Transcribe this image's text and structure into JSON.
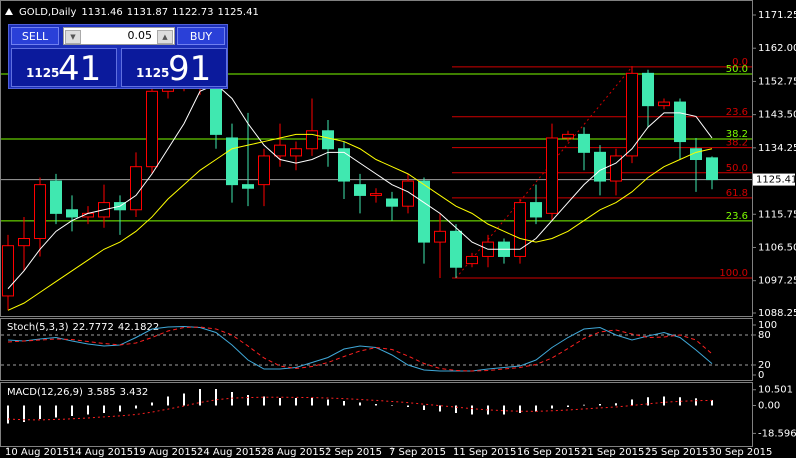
{
  "chart_data": [
    {
      "type": "candlestick",
      "title": "GOLD,Daily",
      "categories": [
        "10 Aug 2015",
        null,
        null,
        null,
        "14 Aug 2015",
        null,
        null,
        null,
        "19 Aug 2015",
        null,
        null,
        null,
        "24 Aug 2015",
        null,
        null,
        null,
        "28 Aug 2015",
        null,
        null,
        null,
        "2 Sep 2015",
        null,
        null,
        null,
        "7 Sep 2015",
        null,
        null,
        null,
        "11 Sep 2015",
        null,
        null,
        null,
        "16 Sep 2015",
        null,
        null,
        null,
        "21 Sep 2015",
        null,
        null,
        null,
        "25 Sep 2015",
        null,
        null,
        null,
        "30 Sep 2015"
      ],
      "open": [
        1093,
        1107,
        1109,
        1125,
        1117,
        1115,
        1115,
        1119,
        1117,
        1129,
        1150,
        1152,
        1152,
        1152,
        1137,
        1124,
        1124,
        1132,
        1132,
        1134,
        1139,
        1134,
        1124,
        1121,
        1120,
        1118,
        1125,
        1108,
        1111,
        1102,
        1104,
        1108,
        1104,
        1119,
        1116,
        1137,
        1138,
        1133,
        1125,
        1132,
        1155,
        1146,
        1147,
        1134,
        1131.46
      ],
      "high": [
        1110,
        1115,
        1126,
        1127,
        1121,
        1118,
        1124,
        1121,
        1133,
        1157,
        1162,
        1155,
        1162,
        1155,
        1141,
        1144,
        1134,
        1141,
        1136,
        1148,
        1142,
        1136,
        1127,
        1123,
        1122,
        1127,
        1126,
        1116,
        1113,
        1105,
        1110,
        1109,
        1120,
        1124,
        1141,
        1139,
        1140,
        1135,
        1134,
        1157,
        1156,
        1148,
        1148,
        1137,
        1131.87
      ],
      "low": [
        1089,
        1100,
        1104,
        1113,
        1111,
        1113,
        1112,
        1110,
        1115,
        1127,
        1148,
        1150,
        1149,
        1134,
        1119,
        1118,
        1118,
        1129,
        1128,
        1132,
        1129,
        1120,
        1116,
        1119,
        1114,
        1116,
        1102,
        1098,
        1098,
        1101,
        1101,
        1102,
        1102,
        1113,
        1114,
        1136,
        1128,
        1121,
        1121,
        1130,
        1140,
        1145,
        1131,
        1122,
        1122.73
      ],
      "close": [
        1107,
        1109,
        1124,
        1116,
        1115,
        1116,
        1119,
        1117,
        1129,
        1150,
        1152,
        1153,
        1158,
        1138,
        1124,
        1123,
        1132,
        1135,
        1134,
        1139,
        1134,
        1125,
        1121,
        1121.5,
        1118,
        1125,
        1108,
        1111,
        1101,
        1104,
        1108,
        1104,
        1119,
        1115,
        1137,
        1138,
        1133,
        1125,
        1132,
        1155,
        1146,
        1147,
        1136,
        1131,
        1125.41
      ],
      "up_color": "#ff0000",
      "down_color": "#40e8b0",
      "series": [
        {
          "color": "#ffffff",
          "values": [
            1095,
            1100,
            1106,
            1111,
            1114,
            1116,
            1117,
            1118,
            1121,
            1127,
            1134,
            1141,
            1150,
            1152,
            1148,
            1141,
            1135,
            1131,
            1130,
            1131,
            1133,
            1133,
            1130,
            1127,
            1124,
            1122,
            1119,
            1116,
            1112,
            1108,
            1106,
            1106,
            1106,
            1109,
            1114,
            1119,
            1124,
            1128,
            1130,
            1134,
            1140,
            1144,
            1144,
            1143,
            1137
          ]
        },
        {
          "color": "#ffff00",
          "values": [
            1089,
            1091,
            1094,
            1097,
            1100,
            1103,
            1106,
            1108,
            1111,
            1115,
            1120,
            1124,
            1128,
            1131,
            1134,
            1135,
            1136,
            1137,
            1138,
            1138,
            1137,
            1136,
            1134,
            1131,
            1129,
            1127,
            1124,
            1121,
            1118,
            1116,
            1113,
            1111,
            1109,
            1108,
            1109,
            1111,
            1114,
            1117,
            1119,
            1122,
            1126,
            1129,
            1131,
            1133,
            1134
          ]
        }
      ],
      "fibonacci": [
        {
          "color": "#d00000",
          "levels": [
            {
              "label": "0.0",
              "value": 1156.8
            },
            {
              "label": "23.6",
              "value": 1142.9
            },
            {
              "label": "38.2",
              "value": 1134.3
            },
            {
              "label": "50.0",
              "value": 1127.3
            },
            {
              "label": "61.8",
              "value": 1120.3
            },
            {
              "label": "100.0",
              "value": 1098
            }
          ]
        },
        {
          "color": "#7cfc00",
          "levels": [
            {
              "label": "50.0",
              "value": 1154.8
            },
            {
              "label": "38.2",
              "value": 1136.7
            },
            {
              "label": "23.6",
              "value": 1113.9
            }
          ]
        }
      ],
      "ylim": [
        1088.25,
        1171.25
      ],
      "yticks": [
        1171.25,
        {
          "value": 1162,
          "label": "1162.00"
        },
        1152.75,
        {
          "value": 1143.5,
          "label": "1143.50"
        },
        1134.25,
        1115.75,
        {
          "value": 1106.5,
          "label": "1106.50"
        },
        1097.25,
        1088.25
      ]
    },
    {
      "type": "line",
      "title": "Stoch(5,3,3)",
      "series": [
        {
          "color": "#40a8d8",
          "values": [
            70,
            68,
            72,
            75,
            68,
            62,
            58,
            60,
            75,
            92,
            96,
            97,
            95,
            85,
            60,
            30,
            12,
            12,
            15,
            25,
            35,
            52,
            58,
            55,
            40,
            20,
            10,
            8,
            8,
            8,
            12,
            15,
            18,
            30,
            55,
            75,
            92,
            95,
            80,
            70,
            78,
            85,
            75,
            50,
            22.7772
          ]
        },
        {
          "color": "#ff2020",
          "dash": true,
          "values": [
            66,
            68,
            70,
            72,
            71,
            67,
            63,
            60,
            64,
            75,
            88,
            95,
            96,
            92,
            80,
            58,
            34,
            18,
            13,
            17,
            25,
            37,
            48,
            55,
            51,
            38,
            23,
            13,
            9,
            8,
            9,
            12,
            15,
            21,
            34,
            53,
            73,
            86,
            90,
            82,
            75,
            76,
            80,
            70,
            42.1822
          ]
        }
      ],
      "ylim": [
        0,
        100
      ],
      "yticks": [
        100,
        80,
        20,
        0
      ]
    },
    {
      "type": "macd",
      "title": "MACD(12,26,9)",
      "values": [
        -12,
        -11,
        -9,
        -8,
        -7,
        -6,
        -5,
        -4,
        -2,
        2,
        6,
        8,
        11,
        11,
        9,
        7,
        6,
        5,
        5,
        5,
        4,
        3,
        2,
        1,
        0,
        -1,
        -3,
        -4,
        -5,
        -6,
        -6,
        -6,
        -5,
        -4,
        -2,
        -1,
        0.5,
        1,
        1.5,
        4,
        5.5,
        6,
        5.5,
        4.8,
        3.585
      ],
      "color": "#ffffff",
      "series": [
        {
          "color": "#ff2020",
          "dash": true,
          "values": [
            -9,
            -9.5,
            -9.6,
            -9.3,
            -8.9,
            -8.3,
            -7.6,
            -6.9,
            -6,
            -4.4,
            -2.4,
            -0.3,
            2,
            3.8,
            4.9,
            5.3,
            5.5,
            5.5,
            5.4,
            5.3,
            5,
            4.6,
            4,
            3.4,
            2.7,
            1.9,
            0.9,
            -0.1,
            -1.1,
            -2.1,
            -2.9,
            -3.5,
            -3.8,
            -3.9,
            -3.5,
            -3,
            -2.3,
            -1.6,
            -1,
            0,
            1.1,
            2.1,
            2.8,
            3.2,
            3.432
          ]
        }
      ],
      "ylim": [
        -27,
        13
      ],
      "yticks": [
        10.501,
        {
          "value": 0,
          "label": "0.00"
        },
        -18.596
      ]
    }
  ],
  "trade_panel": {
    "sell": "SELL",
    "buy": "BUY",
    "volume": "0.05",
    "bid": {
      "prefix": "1125",
      "big": "41"
    },
    "ask": {
      "prefix": "1125",
      "big": "91"
    }
  }
}
